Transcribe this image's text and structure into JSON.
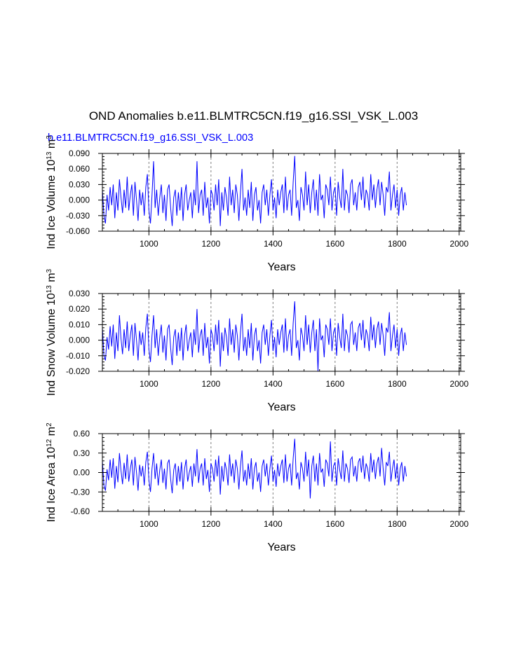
{
  "title": "OND Anomalies b.e11.BLMTRC5CN.f19_g16.SSI_VSK_L.003",
  "case_label": "b.e11.BLMTRC5CN.f19_g16.SSI_VSK_L.003",
  "colors": {
    "series": "#0000ff",
    "grid": "#808080",
    "axis": "#000000"
  },
  "chart_data": [
    {
      "type": "line",
      "title": "",
      "xlabel": "Years",
      "ylabel": {
        "main": "Ind Ice Volume 10",
        "exp": "13",
        "unit": " m",
        "unit_exp": "3"
      },
      "xlim": [
        850,
        2005
      ],
      "ylim": [
        -0.06,
        0.09
      ],
      "xticks": [
        1000,
        1200,
        1400,
        1600,
        1800,
        2000
      ],
      "xtick_labels": [
        "1000",
        "1200",
        "1400",
        "1600",
        "1800",
        "2000"
      ],
      "yticks": [
        -0.06,
        -0.03,
        0.0,
        0.03,
        0.06,
        0.09
      ],
      "ytick_labels": [
        "-0.060",
        "-0.030",
        "0.000",
        "0.030",
        "0.060",
        "0.090"
      ],
      "vertical_grid": "dashed at major x ticks",
      "series": [
        {
          "name": "",
          "x_start": 850,
          "x_step": 5,
          "values": [
            0.02,
            -0.03,
            -0.045,
            0.01,
            -0.02,
            0.025,
            -0.01,
            0.03,
            -0.035,
            0.015,
            -0.02,
            0.04,
            0.005,
            -0.025,
            0.02,
            -0.015,
            0.045,
            -0.02,
            0.01,
            0.03,
            -0.03,
            0.035,
            0.0,
            -0.04,
            0.02,
            -0.01,
            0.015,
            -0.03,
            0.025,
            0.05,
            -0.02,
            -0.045,
            0.01,
            0.075,
            -0.015,
            0.02,
            -0.03,
            0.005,
            0.03,
            -0.025,
            0.01,
            -0.04,
            0.02,
            0.03,
            -0.015,
            -0.05,
            0.005,
            0.02,
            -0.03,
            0.015,
            -0.02,
            0.025,
            -0.04,
            0.01,
            0.03,
            -0.02,
            0.0,
            0.015,
            -0.035,
            0.02,
            -0.01,
            0.075,
            -0.025,
            0.01,
            0.02,
            -0.03,
            0.035,
            -0.015,
            0.005,
            -0.045,
            0.02,
            0.01,
            -0.02,
            0.03,
            -0.01,
            0.04,
            -0.05,
            0.015,
            -0.02,
            0.025,
            0.005,
            -0.03,
            0.045,
            -0.01,
            0.02,
            -0.025,
            0.03,
            0.01,
            -0.04,
            0.015,
            0.06,
            -0.02,
            0.005,
            -0.03,
            0.02,
            -0.015,
            0.035,
            -0.04,
            0.01,
            0.025,
            -0.02,
            0.0,
            -0.045,
            0.015,
            0.03,
            -0.01,
            0.02,
            -0.03,
            0.01,
            0.04,
            -0.02,
            0.005,
            -0.035,
            0.02,
            -0.01,
            0.015,
            0.03,
            -0.025,
            0.045,
            -0.02,
            0.01,
            0.02,
            -0.03,
            0.035,
            0.085,
            -0.015,
            0.0,
            -0.04,
            0.025,
            0.01,
            -0.02,
            0.055,
            -0.01,
            0.03,
            -0.025,
            0.015,
            0.04,
            -0.02,
            0.02,
            -0.03,
            0.05,
            0.0,
            0.01,
            -0.035,
            0.03,
            0.02,
            -0.01,
            0.045,
            -0.02,
            0.015,
            0.025,
            -0.03,
            0.035,
            0.005,
            -0.015,
            0.06,
            -0.02,
            0.02,
            0.01,
            -0.025,
            0.03,
            0.04,
            -0.01,
            0.015,
            -0.02,
            0.025,
            0.035,
            0.0,
            0.045,
            -0.015,
            0.02,
            0.01,
            -0.02,
            0.05,
            0.0,
            0.03,
            -0.015,
            0.02,
            0.04,
            -0.01,
            0.035,
            0.01,
            -0.03,
            0.025,
            0.015,
            0.055,
            -0.02,
            0.01,
            0.03,
            -0.015,
            0.02,
            -0.03,
            0.01,
            0.025,
            -0.02,
            0.015,
            -0.01
          ]
        }
      ]
    },
    {
      "type": "line",
      "title": "",
      "xlabel": "Years",
      "ylabel": {
        "main": "Ind Snow Volume 10",
        "exp": "13",
        "unit": " m",
        "unit_exp": "3"
      },
      "xlim": [
        850,
        2005
      ],
      "ylim": [
        -0.02,
        0.03
      ],
      "xticks": [
        1000,
        1200,
        1400,
        1600,
        1800,
        2000
      ],
      "xtick_labels": [
        "1000",
        "1200",
        "1400",
        "1600",
        "1800",
        "2000"
      ],
      "yticks": [
        -0.02,
        -0.01,
        0.0,
        0.01,
        0.02,
        0.03
      ],
      "ytick_labels": [
        "-0.020",
        "-0.010",
        "0.000",
        "0.010",
        "0.020",
        "0.030"
      ],
      "vertical_grid": "dashed at major x ticks",
      "series": [
        {
          "name": "",
          "x_start": 850,
          "x_step": 5,
          "values": [
            0.008,
            -0.01,
            -0.013,
            0.002,
            -0.006,
            0.009,
            -0.004,
            0.01,
            -0.012,
            0.005,
            -0.007,
            0.016,
            0.001,
            -0.009,
            0.007,
            -0.005,
            0.012,
            -0.007,
            0.003,
            0.01,
            -0.01,
            0.011,
            0.0,
            -0.013,
            0.006,
            -0.003,
            0.005,
            -0.01,
            0.008,
            0.017,
            -0.006,
            -0.014,
            0.003,
            0.016,
            -0.005,
            0.007,
            -0.01,
            0.002,
            0.01,
            -0.008,
            0.003,
            -0.013,
            0.007,
            0.01,
            -0.005,
            -0.016,
            0.002,
            0.007,
            -0.01,
            0.005,
            -0.007,
            0.008,
            -0.013,
            0.003,
            0.01,
            -0.007,
            0.0,
            0.005,
            -0.011,
            0.007,
            -0.003,
            0.02,
            -0.008,
            0.003,
            0.007,
            -0.01,
            0.011,
            -0.005,
            0.002,
            -0.015,
            0.007,
            0.003,
            -0.007,
            0.01,
            -0.003,
            0.013,
            -0.017,
            0.005,
            -0.007,
            0.008,
            0.002,
            -0.01,
            0.014,
            -0.003,
            0.007,
            -0.008,
            0.01,
            0.003,
            -0.013,
            0.005,
            0.017,
            -0.007,
            0.002,
            -0.01,
            0.007,
            -0.005,
            0.011,
            -0.013,
            0.003,
            0.008,
            -0.007,
            0.0,
            -0.015,
            0.005,
            0.01,
            -0.003,
            0.007,
            -0.01,
            0.003,
            0.013,
            -0.007,
            0.002,
            -0.011,
            0.007,
            -0.003,
            0.005,
            0.01,
            -0.008,
            0.014,
            -0.007,
            0.003,
            0.007,
            -0.01,
            0.011,
            0.025,
            -0.005,
            0.0,
            -0.013,
            0.008,
            0.003,
            -0.007,
            0.016,
            -0.003,
            0.01,
            -0.008,
            0.005,
            0.013,
            -0.007,
            0.007,
            -0.02,
            0.014,
            0.0,
            0.003,
            -0.011,
            0.01,
            0.007,
            -0.003,
            0.014,
            -0.007,
            0.005,
            0.008,
            -0.01,
            0.011,
            0.002,
            -0.005,
            0.017,
            -0.007,
            0.007,
            0.003,
            -0.008,
            0.01,
            0.012,
            -0.003,
            0.005,
            -0.007,
            0.008,
            0.011,
            0.0,
            0.013,
            -0.005,
            0.007,
            0.003,
            -0.007,
            0.015,
            0.0,
            0.01,
            -0.005,
            0.007,
            0.012,
            -0.003,
            0.011,
            0.003,
            -0.01,
            0.008,
            0.005,
            0.018,
            -0.007,
            0.003,
            0.01,
            -0.005,
            0.007,
            -0.01,
            0.003,
            0.008,
            -0.007,
            0.005,
            -0.003
          ]
        }
      ]
    },
    {
      "type": "line",
      "title": "",
      "xlabel": "Years",
      "ylabel": {
        "main": "Ind Ice Area 10",
        "exp": "12",
        "unit": " m",
        "unit_exp": "2"
      },
      "xlim": [
        850,
        2005
      ],
      "ylim": [
        -0.6,
        0.6
      ],
      "xticks": [
        1000,
        1200,
        1400,
        1600,
        1800,
        2000
      ],
      "xtick_labels": [
        "1000",
        "1200",
        "1400",
        "1600",
        "1800",
        "2000"
      ],
      "yticks": [
        -0.6,
        -0.3,
        0.0,
        0.3,
        0.6
      ],
      "ytick_labels": [
        "-0.60",
        "-0.30",
        "0.00",
        "0.30",
        "0.60"
      ],
      "vertical_grid": "dashed at major x ticks",
      "series": [
        {
          "name": "",
          "x_start": 850,
          "x_step": 5,
          "values": [
            0.18,
            -0.2,
            -0.28,
            0.05,
            -0.12,
            0.2,
            -0.08,
            0.22,
            -0.25,
            0.1,
            -0.15,
            0.3,
            0.03,
            -0.18,
            0.15,
            -0.1,
            0.28,
            -0.14,
            0.06,
            0.2,
            -0.2,
            0.24,
            0.0,
            -0.28,
            0.12,
            -0.06,
            0.1,
            -0.2,
            0.16,
            0.32,
            -0.12,
            -0.3,
            0.06,
            0.3,
            -0.1,
            0.14,
            -0.2,
            0.04,
            0.2,
            -0.16,
            0.06,
            -0.26,
            0.14,
            0.2,
            -0.1,
            -0.32,
            0.04,
            0.14,
            -0.2,
            0.1,
            -0.14,
            0.16,
            -0.26,
            0.06,
            0.2,
            -0.14,
            0.0,
            0.1,
            -0.22,
            0.14,
            -0.06,
            0.36,
            -0.16,
            0.06,
            0.14,
            -0.2,
            0.22,
            -0.1,
            0.04,
            -0.3,
            0.14,
            0.06,
            -0.14,
            0.2,
            -0.06,
            0.26,
            -0.34,
            0.1,
            -0.14,
            0.16,
            0.04,
            -0.2,
            0.28,
            -0.06,
            0.14,
            -0.16,
            0.2,
            0.06,
            -0.26,
            0.1,
            0.34,
            -0.14,
            0.04,
            -0.2,
            0.14,
            -0.1,
            0.22,
            -0.26,
            0.06,
            0.16,
            -0.14,
            0.0,
            -0.3,
            0.1,
            0.2,
            -0.06,
            0.14,
            -0.2,
            0.06,
            0.26,
            -0.14,
            0.04,
            -0.22,
            0.14,
            -0.06,
            0.1,
            0.2,
            -0.16,
            0.28,
            -0.14,
            0.06,
            0.14,
            -0.2,
            0.22,
            0.52,
            -0.1,
            0.0,
            -0.26,
            0.16,
            0.06,
            -0.14,
            0.32,
            -0.06,
            0.2,
            -0.4,
            0.1,
            0.26,
            -0.14,
            0.14,
            -0.2,
            0.3,
            0.0,
            0.06,
            -0.22,
            0.2,
            0.14,
            -0.06,
            0.48,
            -0.14,
            0.1,
            0.16,
            -0.2,
            0.22,
            0.04,
            -0.1,
            0.34,
            -0.14,
            0.14,
            0.06,
            -0.16,
            0.2,
            0.24,
            -0.06,
            0.1,
            -0.14,
            0.16,
            0.22,
            0.0,
            0.26,
            -0.1,
            0.14,
            0.06,
            -0.14,
            0.3,
            0.0,
            0.2,
            -0.1,
            0.14,
            0.24,
            -0.06,
            0.38,
            0.06,
            -0.2,
            0.16,
            0.1,
            0.32,
            -0.14,
            0.06,
            0.2,
            -0.1,
            0.14,
            -0.2,
            0.06,
            0.16,
            -0.14,
            0.1,
            -0.06
          ]
        }
      ]
    }
  ]
}
